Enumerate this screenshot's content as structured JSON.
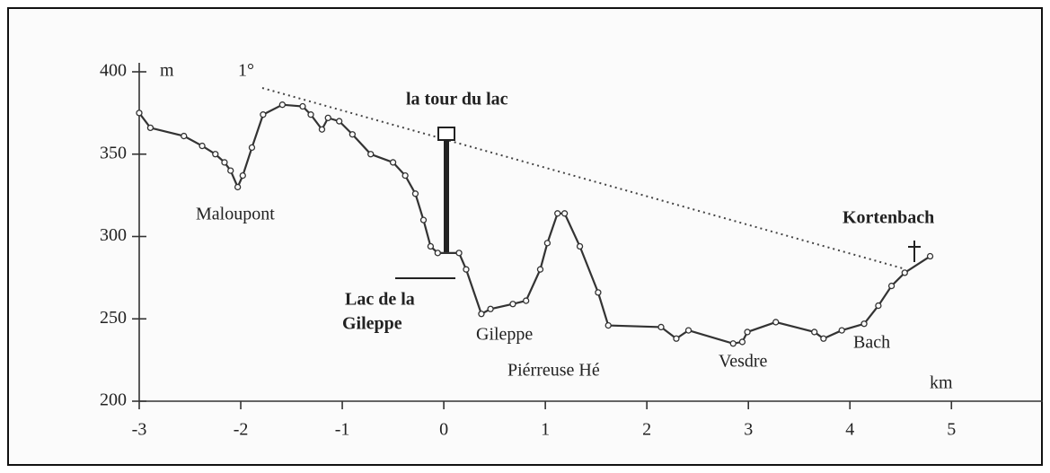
{
  "chart_data": {
    "type": "line",
    "x_label": "km",
    "y_label": "m",
    "x": [
      -3,
      -2.89,
      -2.56,
      -2.38,
      -2.25,
      -2.16,
      -2.1,
      -2.03,
      -1.98,
      -1.89,
      -1.78,
      -1.59,
      -1.39,
      -1.31,
      -1.2,
      -1.14,
      -1.03,
      -0.9,
      -0.72,
      -0.5,
      -0.38,
      -0.28,
      -0.2,
      -0.13,
      -0.06,
      0.15,
      0.22,
      0.37,
      0.46,
      0.68,
      0.81,
      0.95,
      1.02,
      1.12,
      1.19,
      1.34,
      1.52,
      1.62,
      2.14,
      2.29,
      2.41,
      2.85,
      2.94,
      2.99,
      3.27,
      3.65,
      3.74,
      3.92,
      4.14,
      4.28,
      4.41,
      4.54,
      4.79
    ],
    "values": [
      375,
      366,
      361,
      355,
      350,
      345,
      340,
      330,
      337,
      354,
      374,
      380,
      379,
      374,
      365,
      372,
      370,
      362,
      350,
      345,
      337,
      326,
      310,
      294,
      290,
      290,
      280,
      253,
      256,
      259,
      261,
      280,
      296,
      314,
      314,
      294,
      266,
      246,
      245,
      238,
      243,
      235,
      236,
      242,
      248,
      242,
      238,
      243,
      247,
      258,
      270,
      278,
      288
    ],
    "color": "#333333",
    "xlim": [
      -3,
      5.9
    ],
    "ylim": [
      200,
      400
    ],
    "xticks": [
      -3,
      -2,
      -1,
      0,
      1,
      2,
      3,
      4,
      5
    ],
    "yticks": [
      200,
      250,
      300,
      350,
      400
    ],
    "annotations": [
      "1°",
      "la tour du lac",
      "Maloupont",
      "Kortenbach",
      "Lac de la",
      "Gileppe",
      "Gileppe",
      "Piérreuse Hé",
      "Vesdre",
      "Bach"
    ]
  }
}
